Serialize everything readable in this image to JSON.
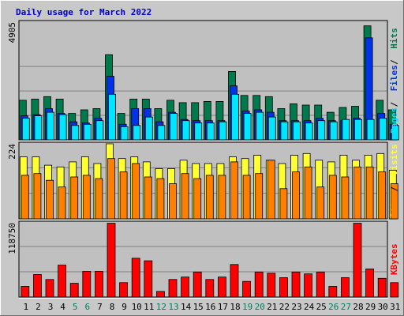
{
  "chart_data": {
    "type": "bar",
    "title": "Daily usage for March 2022",
    "categories": [
      "1",
      "2",
      "3",
      "4",
      "5",
      "6",
      "7",
      "8",
      "9",
      "10",
      "11",
      "12",
      "13",
      "14",
      "15",
      "16",
      "17",
      "18",
      "19",
      "20",
      "21",
      "22",
      "23",
      "24",
      "25",
      "26",
      "27",
      "28",
      "29",
      "30",
      "31"
    ],
    "weekend_days": [
      "5",
      "6",
      "12",
      "13",
      "19",
      "20",
      "26",
      "27"
    ],
    "panels": [
      {
        "id": "top",
        "ymax": 4905,
        "ymax_label": "4905",
        "axis_labels": [
          "Pages",
          "Files",
          "Hits"
        ],
        "series": [
          {
            "name": "Hits",
            "color": "#007A4D",
            "values": [
              1650,
              1700,
              1800,
              1700,
              1100,
              1250,
              1300,
              3550,
              1100,
              1700,
              1700,
              1300,
              1650,
              1550,
              1550,
              1600,
              1600,
              2850,
              1850,
              1850,
              1800,
              1300,
              1500,
              1450,
              1450,
              1150,
              1350,
              1400,
              4750,
              1650,
              1250
            ]
          },
          {
            "name": "Files",
            "color": "#0033E6",
            "values": [
              1000,
              1050,
              1300,
              1100,
              750,
              700,
              900,
              2650,
              650,
              1300,
              1300,
              750,
              1150,
              850,
              800,
              800,
              800,
              2250,
              1200,
              1250,
              1150,
              800,
              800,
              800,
              900,
              800,
              800,
              900,
              4250,
              1100,
              650
            ]
          },
          {
            "name": "Pages",
            "color": "#00E6FF",
            "values": [
              900,
              1000,
              1150,
              1050,
              600,
              650,
              800,
              1900,
              550,
              600,
              950,
              600,
              1100,
              800,
              700,
              700,
              750,
              1900,
              1100,
              1150,
              950,
              750,
              750,
              700,
              800,
              750,
              850,
              850,
              850,
              900,
              600
            ]
          }
        ]
      },
      {
        "id": "middle",
        "ymax": 224,
        "ymax_label": "224",
        "axis_labels": [
          "Sites",
          "Visits"
        ],
        "series": [
          {
            "name": "Visits",
            "color": "#FFFF33",
            "values": [
              185,
              185,
              160,
              155,
              170,
              185,
              165,
              224,
              180,
              185,
              170,
              150,
              150,
              175,
              165,
              165,
              165,
              185,
              180,
              190,
              175,
              165,
              190,
              195,
              175,
              170,
              190,
              175,
              190,
              195,
              145
            ]
          },
          {
            "name": "Sites",
            "color": "#FF8000",
            "values": [
              130,
              135,
              115,
              95,
              125,
              130,
              120,
              180,
              140,
              165,
              125,
              120,
              105,
              135,
              120,
              130,
              130,
              170,
              130,
              135,
              175,
              90,
              140,
              155,
              95,
              130,
              125,
              155,
              155,
              140,
              105
            ]
          }
        ]
      },
      {
        "id": "bottom",
        "ymax": 118750,
        "ymax_label": "118750",
        "axis_labels": [
          "KBytes"
        ],
        "series": [
          {
            "name": "KBytes",
            "color": "#FF0000",
            "values": [
              17000,
              36000,
              28000,
              51000,
              22000,
              41000,
              41000,
              118000,
              23000,
              62000,
              58000,
              9000,
              28000,
              32000,
              40000,
              28000,
              32000,
              52000,
              25000,
              40000,
              38000,
              31000,
              40000,
              37000,
              40000,
              17000,
              31000,
              118000,
              45000,
              30000,
              23000
            ]
          }
        ]
      }
    ]
  }
}
